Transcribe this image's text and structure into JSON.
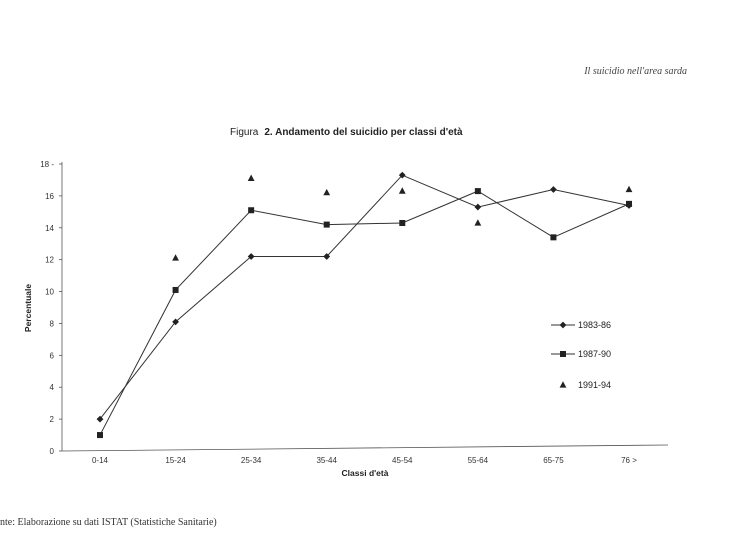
{
  "header": {
    "note": "Il suicidio nell'area sarda"
  },
  "title": {
    "lead": "Figura",
    "main": "2. Andamento del suicidio per classi d'età"
  },
  "footer": {
    "source": "nte: Elaborazione su dati ISTAT (Statistiche Sanitarie)"
  },
  "chart_data": {
    "type": "line",
    "title": "2. Andamento del suicidio per classi d'età",
    "xlabel": "Classi d'età",
    "ylabel": "Percentuale",
    "categories": [
      "0-14",
      "15-24",
      "25-34",
      "35-44",
      "45-54",
      "55-64",
      "65-75",
      "76 >"
    ],
    "ylim": [
      0,
      18
    ],
    "yticks": [
      0,
      2,
      4,
      6,
      8,
      10,
      12,
      14,
      16,
      18
    ],
    "ytick_labels": [
      "0",
      "2",
      "4",
      "6",
      "8",
      "10",
      "12",
      "14",
      "16",
      "18 -"
    ],
    "grid": false,
    "legend_position": "right",
    "series": [
      {
        "name": "1983-86",
        "marker": "diamond",
        "line": true,
        "values": [
          2.0,
          8.1,
          12.2,
          12.2,
          17.3,
          15.3,
          16.4,
          15.4
        ]
      },
      {
        "name": "1987-90",
        "marker": "square",
        "line": true,
        "values": [
          1.0,
          10.1,
          15.1,
          14.2,
          14.3,
          16.3,
          13.4,
          15.5
        ]
      },
      {
        "name": "1991-94",
        "marker": "triangle",
        "line": false,
        "values": [
          null,
          12.1,
          17.1,
          16.2,
          16.3,
          14.3,
          null,
          16.4
        ]
      }
    ]
  }
}
